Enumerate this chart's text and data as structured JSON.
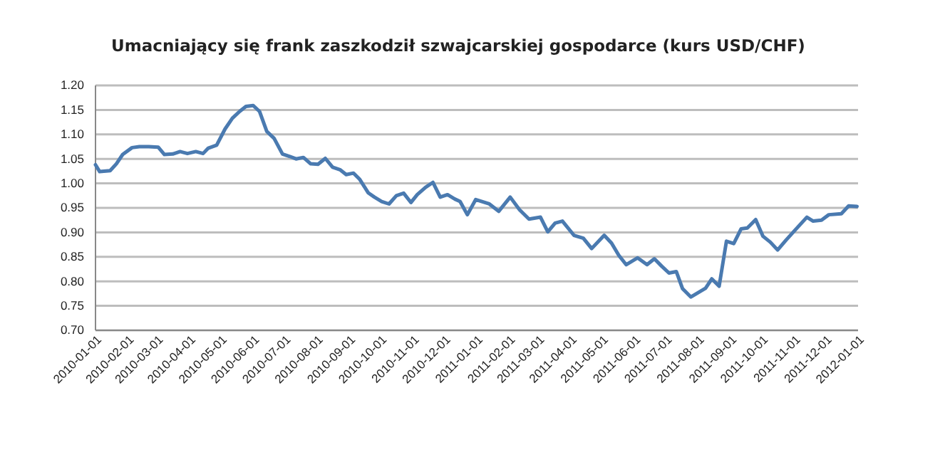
{
  "chart_data": {
    "type": "line",
    "title": "Umacniający się frank zaszkodził szwajcarskiej gospodarce (kurs USD/CHF)",
    "x": [
      "2010-01-01",
      "2010-01-05",
      "2010-01-15",
      "2010-01-21",
      "2010-01-27",
      "2010-02-05",
      "2010-02-12",
      "2010-02-21",
      "2010-03-02",
      "2010-03-08",
      "2010-03-16",
      "2010-03-23",
      "2010-03-30",
      "2010-04-07",
      "2010-04-14",
      "2010-04-19",
      "2010-04-27",
      "2010-05-05",
      "2010-05-12",
      "2010-05-19",
      "2010-05-25",
      "2010-06-01",
      "2010-06-07",
      "2010-06-14",
      "2010-06-21",
      "2010-06-29",
      "2010-07-06",
      "2010-07-12",
      "2010-07-19",
      "2010-07-26",
      "2010-08-02",
      "2010-08-09",
      "2010-08-16",
      "2010-08-23",
      "2010-08-29",
      "2010-09-05",
      "2010-09-11",
      "2010-09-19",
      "2010-09-25",
      "2010-10-02",
      "2010-10-09",
      "2010-10-16",
      "2010-10-23",
      "2010-10-30",
      "2010-11-05",
      "2010-11-13",
      "2010-11-20",
      "2010-11-27",
      "2010-12-04",
      "2010-12-11",
      "2010-12-16",
      "2010-12-23",
      "2010-12-31",
      "2011-01-13",
      "2011-01-22",
      "2011-02-02",
      "2011-02-11",
      "2011-02-20",
      "2011-03-03",
      "2011-03-10",
      "2011-03-17",
      "2011-03-24",
      "2011-04-04",
      "2011-04-13",
      "2011-04-21",
      "2011-05-03",
      "2011-05-10",
      "2011-05-17",
      "2011-05-24",
      "2011-06-04",
      "2011-06-13",
      "2011-06-20",
      "2011-06-27",
      "2011-07-04",
      "2011-07-11",
      "2011-07-17",
      "2011-07-25",
      "2011-08-08",
      "2011-08-14",
      "2011-08-21",
      "2011-08-28",
      "2011-09-04",
      "2011-09-11",
      "2011-09-17",
      "2011-09-25",
      "2011-10-02",
      "2011-10-09",
      "2011-10-16",
      "2011-10-24",
      "2011-11-01",
      "2011-11-13",
      "2011-11-19",
      "2011-11-27",
      "2011-12-04",
      "2011-12-16",
      "2011-12-23",
      "2011-12-31"
    ],
    "series": [
      {
        "color": "#4a7ab0",
        "values": [
          1.038,
          1.024,
          1.026,
          1.04,
          1.059,
          1.073,
          1.075,
          1.075,
          1.074,
          1.059,
          1.06,
          1.065,
          1.061,
          1.065,
          1.061,
          1.072,
          1.078,
          1.111,
          1.133,
          1.147,
          1.157,
          1.159,
          1.147,
          1.106,
          1.092,
          1.06,
          1.055,
          1.05,
          1.053,
          1.04,
          1.039,
          1.051,
          1.033,
          1.028,
          1.018,
          1.021,
          1.008,
          0.981,
          0.972,
          0.963,
          0.958,
          0.975,
          0.98,
          0.961,
          0.977,
          0.992,
          1.002,
          0.972,
          0.977,
          0.968,
          0.963,
          0.936,
          0.967,
          0.958,
          0.943,
          0.972,
          0.946,
          0.927,
          0.931,
          0.901,
          0.919,
          0.923,
          0.894,
          0.888,
          0.867,
          0.894,
          0.878,
          0.853,
          0.834,
          0.848,
          0.834,
          0.846,
          0.831,
          0.817,
          0.82,
          0.785,
          0.768,
          0.786,
          0.805,
          0.79,
          0.882,
          0.877,
          0.907,
          0.909,
          0.926,
          0.892,
          0.88,
          0.864,
          0.884,
          0.903,
          0.931,
          0.923,
          0.925,
          0.936,
          0.938,
          0.954,
          0.953
        ]
      }
    ],
    "xlim": [
      "2010-01-01",
      "2012-01-01"
    ],
    "xticks": [
      "2010-01-01",
      "2010-02-01",
      "2010-03-01",
      "2010-04-01",
      "2010-05-01",
      "2010-06-01",
      "2010-07-01",
      "2010-08-01",
      "2010-09-01",
      "2010-10-01",
      "2010-11-01",
      "2010-12-01",
      "2011-01-01",
      "2011-02-01",
      "2011-03-01",
      "2011-04-01",
      "2011-05-01",
      "2011-06-01",
      "2011-07-01",
      "2011-08-01",
      "2011-09-01",
      "2011-10-01",
      "2011-11-01",
      "2011-12-01",
      "2012-01-01"
    ],
    "ylim": [
      0.7,
      1.2
    ],
    "yticks": [
      {
        "value": 0.7,
        "label": "0.70"
      },
      {
        "value": 0.75,
        "label": "0.75"
      },
      {
        "value": 0.8,
        "label": "0.80"
      },
      {
        "value": 0.85,
        "label": "0.85"
      },
      {
        "value": 0.9,
        "label": "0.90"
      },
      {
        "value": 0.95,
        "label": "0.95"
      },
      {
        "value": 1.0,
        "label": "1.00"
      },
      {
        "value": 1.05,
        "label": "1.05"
      },
      {
        "value": 1.1,
        "label": "1.10"
      },
      {
        "value": 1.15,
        "label": "1.15"
      },
      {
        "value": 1.2,
        "label": "1.20"
      }
    ],
    "grid": "y",
    "marker": "none",
    "line_style": "solid"
  }
}
